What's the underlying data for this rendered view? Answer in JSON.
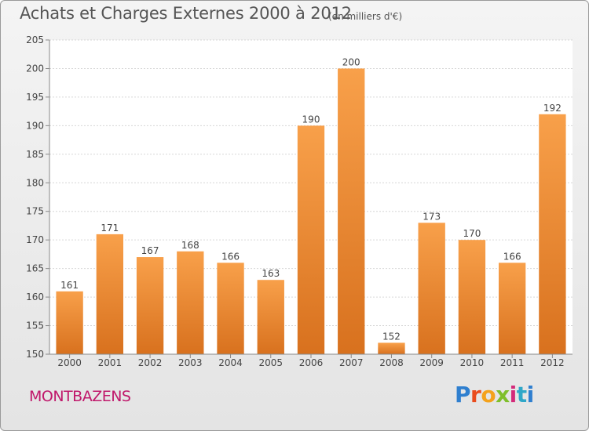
{
  "chart_data": {
    "type": "bar",
    "title": "Achats et Charges Externes 2000 à 2012",
    "subtitle": "(en milliers d'€)",
    "categories": [
      "2000",
      "2001",
      "2002",
      "2003",
      "2004",
      "2005",
      "2006",
      "2007",
      "2008",
      "2009",
      "2010",
      "2011",
      "2012"
    ],
    "values": [
      161,
      171,
      167,
      168,
      166,
      163,
      190,
      200,
      152,
      173,
      170,
      166,
      192
    ],
    "ylim": [
      150,
      205
    ],
    "yticks": [
      150,
      155,
      160,
      165,
      170,
      175,
      180,
      185,
      190,
      195,
      200,
      205
    ],
    "grid": true,
    "bar_color": "#f08c2e",
    "location": "MONTBAZENS"
  },
  "logo": {
    "letters": [
      "P",
      "r",
      "o",
      "x",
      "i",
      "t",
      "i"
    ]
  }
}
